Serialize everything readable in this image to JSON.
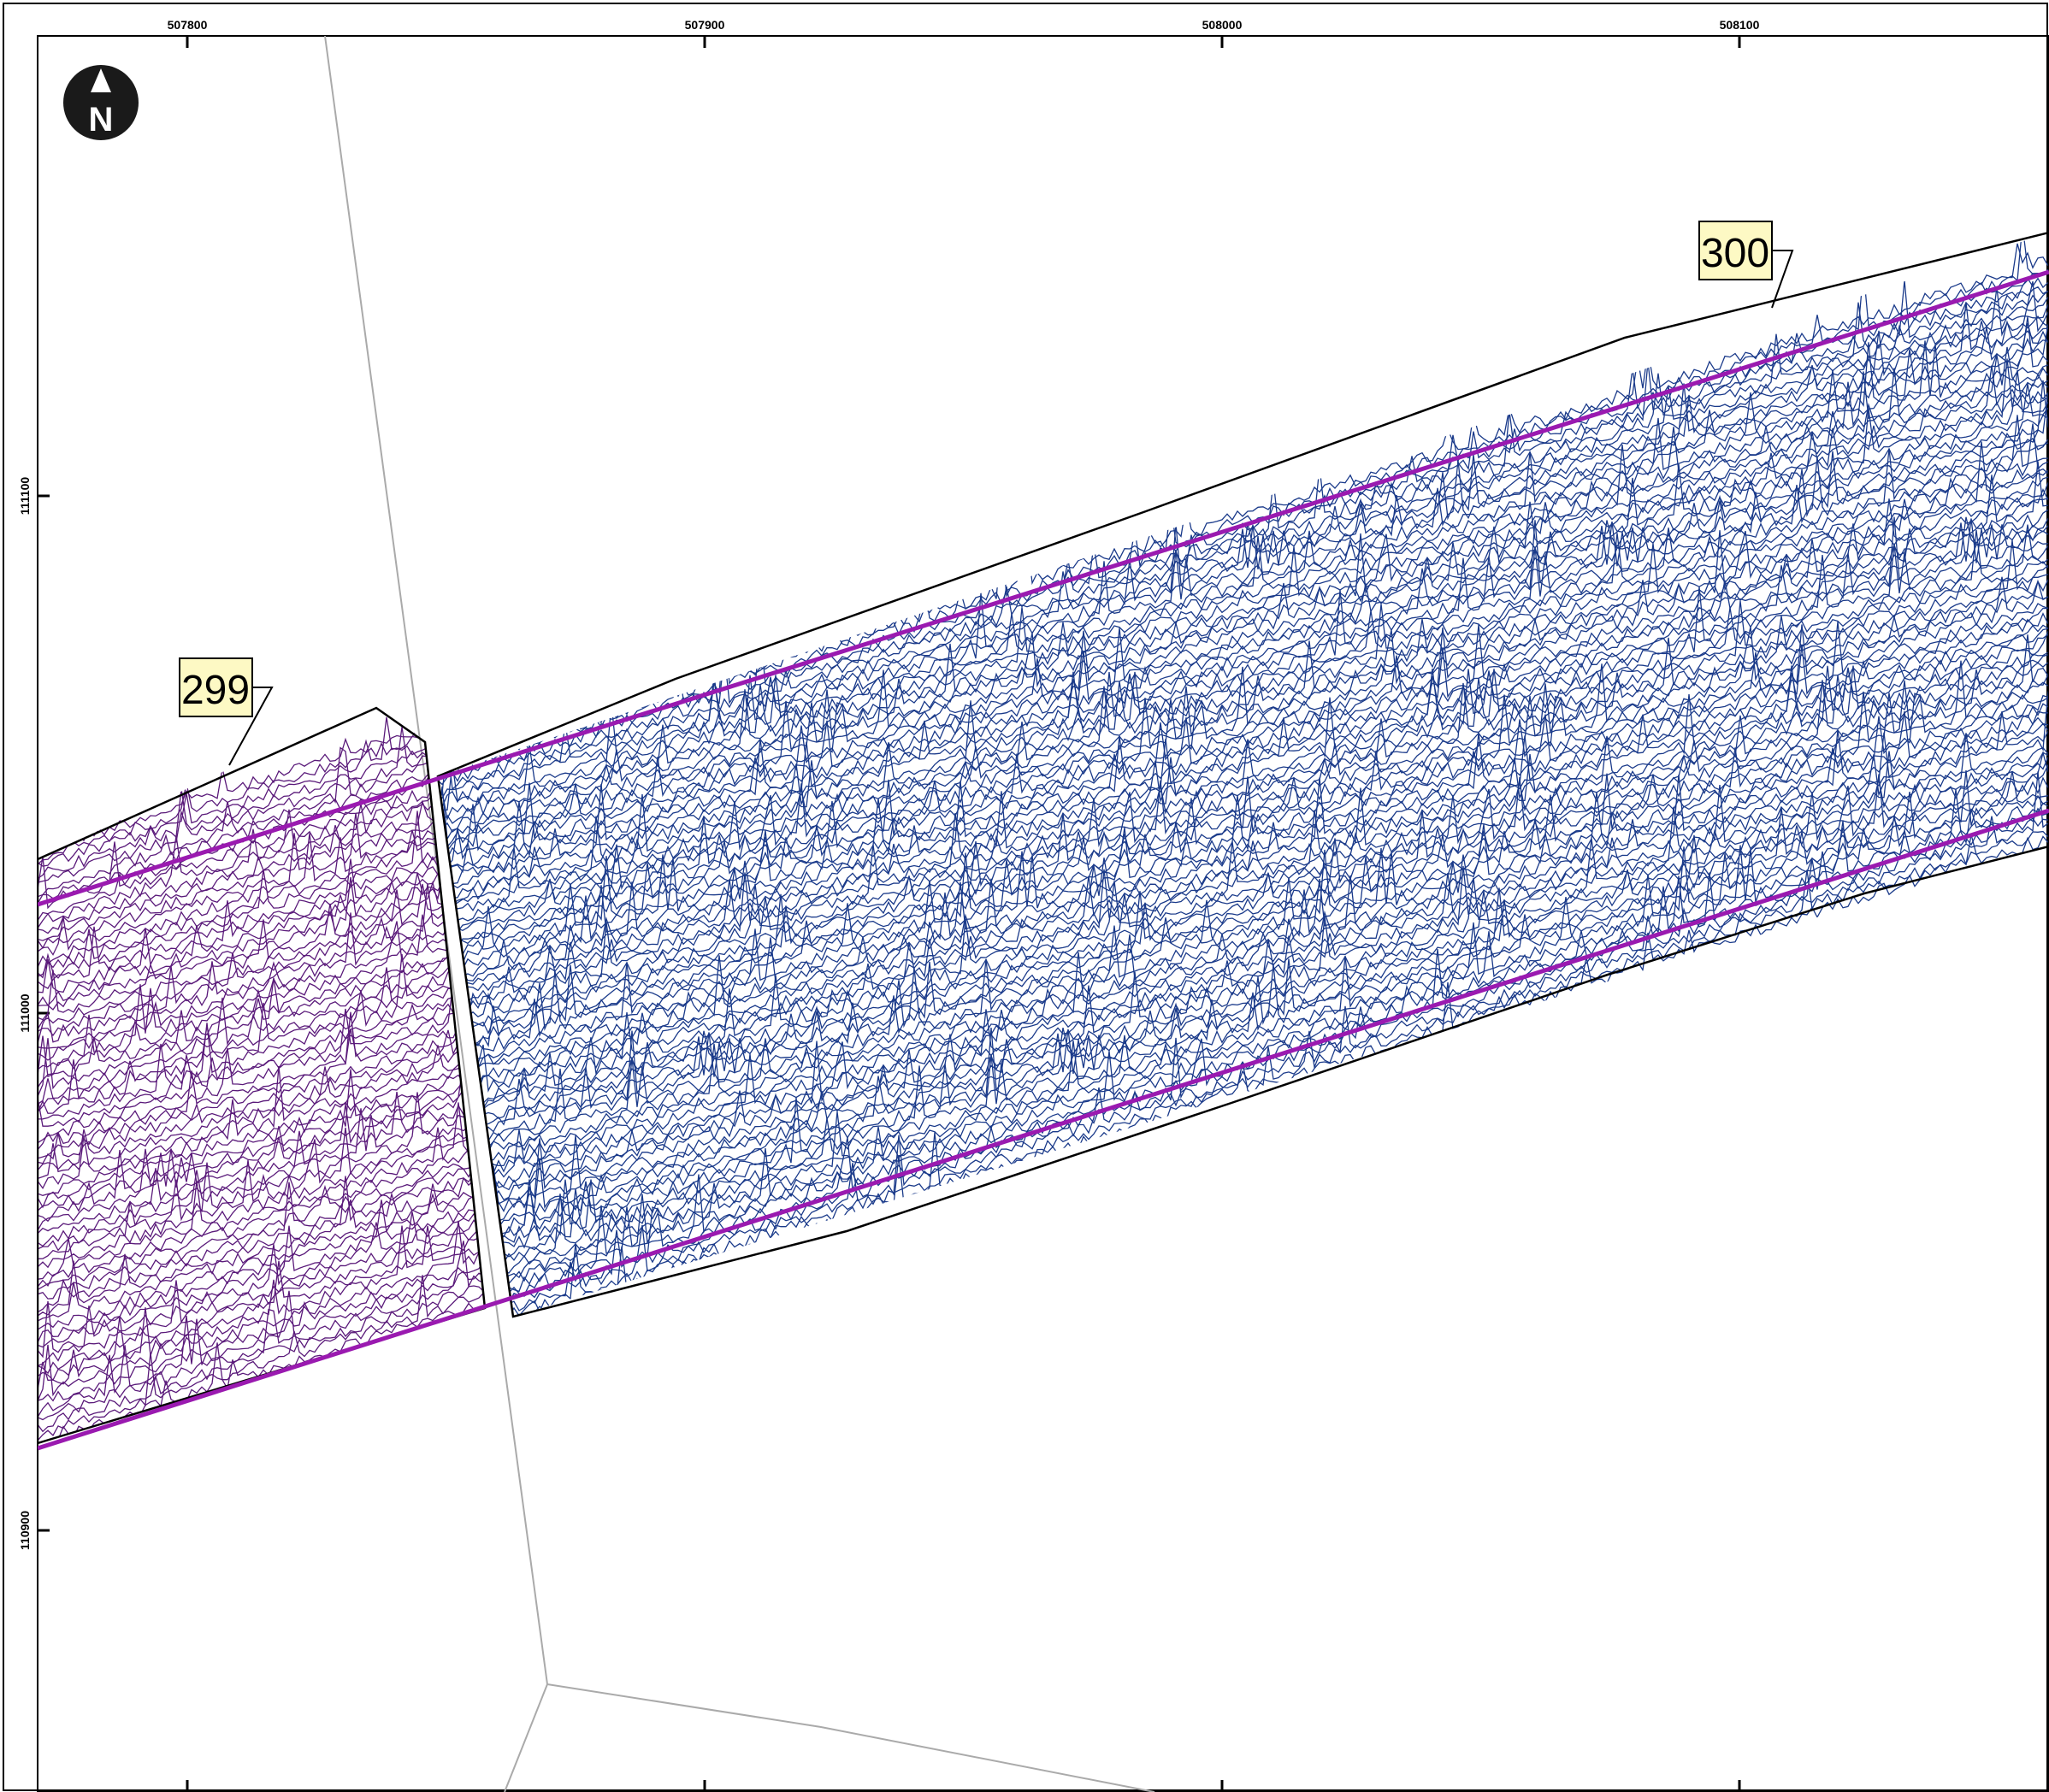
{
  "map": {
    "grid_x_labels": [
      "507800",
      "507900",
      "508000",
      "508100"
    ],
    "grid_y_labels": [
      "111100",
      "111000",
      "110900"
    ],
    "north_arrow": {
      "icon": "north-arrow-icon",
      "letter": "N"
    },
    "survey_lines": [
      {
        "label": "299",
        "color": "#5a1a7a"
      },
      {
        "label": "300",
        "color": "#1a3a8a"
      }
    ],
    "line_edge_color": "#9a1ab0",
    "outline_color": "#000000",
    "boundary_color": "#aaaaaa"
  }
}
